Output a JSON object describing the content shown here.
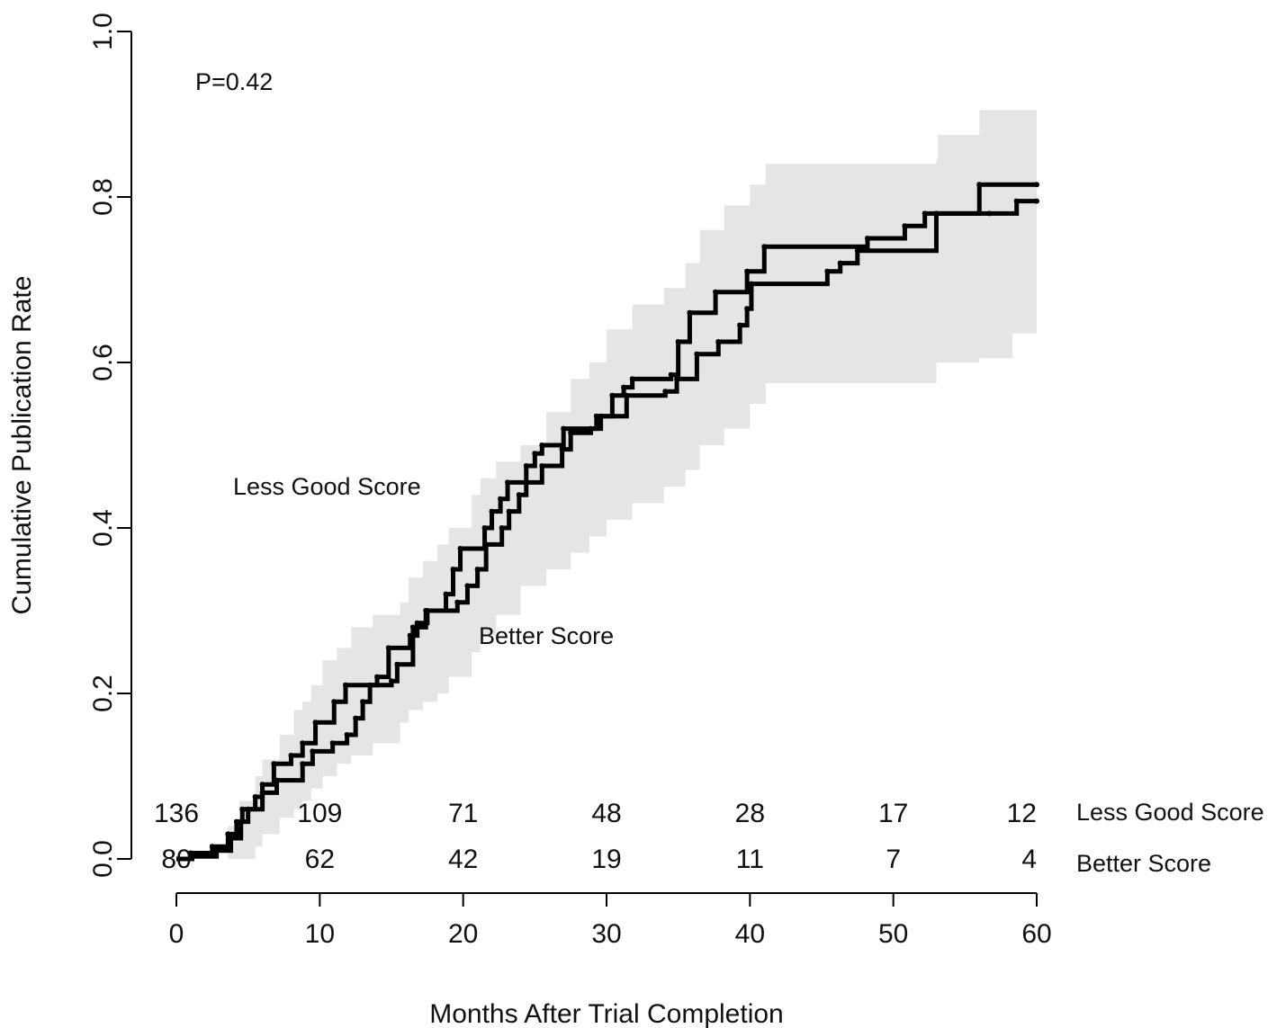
{
  "chart_data": {
    "type": "line",
    "subtype": "kaplan-meier cumulative incidence",
    "xlabel": "Months After Trial Completion",
    "ylabel": "Cumulative Publication Rate",
    "xlim": [
      0,
      60
    ],
    "ylim": [
      0,
      1
    ],
    "x_ticks": [
      "0",
      "10",
      "20",
      "30",
      "40",
      "50",
      "60"
    ],
    "y_ticks": [
      "0.0",
      "0.2",
      "0.4",
      "0.6",
      "0.8",
      "1.0"
    ],
    "grid": false,
    "p_value_label": "P=0.42",
    "series": [
      {
        "name": "Less Good Score",
        "color": "#000000",
        "steps": [
          [
            0,
            0
          ],
          [
            1.0,
            0.007
          ],
          [
            2.5,
            0.015
          ],
          [
            3.6,
            0.03
          ],
          [
            4.2,
            0.045
          ],
          [
            4.6,
            0.06
          ],
          [
            5.5,
            0.075
          ],
          [
            6,
            0.09
          ],
          [
            6.8,
            0.115
          ],
          [
            8,
            0.125
          ],
          [
            8.8,
            0.14
          ],
          [
            9.7,
            0.165
          ],
          [
            11,
            0.19
          ],
          [
            11.8,
            0.21
          ],
          [
            14,
            0.22
          ],
          [
            14.8,
            0.255
          ],
          [
            16.3,
            0.27
          ],
          [
            16.8,
            0.285
          ],
          [
            17.5,
            0.3
          ],
          [
            18.8,
            0.32
          ],
          [
            19.3,
            0.35
          ],
          [
            19.8,
            0.375
          ],
          [
            21.5,
            0.4
          ],
          [
            22,
            0.42
          ],
          [
            22.6,
            0.435
          ],
          [
            23.1,
            0.455
          ],
          [
            24.4,
            0.475
          ],
          [
            25,
            0.49
          ],
          [
            25.5,
            0.5
          ],
          [
            27,
            0.52
          ],
          [
            29.3,
            0.535
          ],
          [
            30.4,
            0.56
          ],
          [
            31.2,
            0.57
          ],
          [
            31.8,
            0.58
          ],
          [
            34.5,
            0.585
          ],
          [
            35,
            0.625
          ],
          [
            35.8,
            0.66
          ],
          [
            37.6,
            0.685
          ],
          [
            39.8,
            0.71
          ],
          [
            41,
            0.74
          ],
          [
            48.2,
            0.75
          ],
          [
            50.8,
            0.765
          ],
          [
            52.2,
            0.78
          ],
          [
            56,
            0.815
          ],
          [
            60,
            0.815
          ]
        ]
      },
      {
        "name": "Better Score",
        "color": "#000000",
        "steps": [
          [
            0,
            0
          ],
          [
            1.1,
            0.003
          ],
          [
            2.8,
            0.01
          ],
          [
            3.8,
            0.025
          ],
          [
            4.5,
            0.045
          ],
          [
            5,
            0.06
          ],
          [
            6,
            0.08
          ],
          [
            7,
            0.095
          ],
          [
            8.8,
            0.115
          ],
          [
            9.5,
            0.13
          ],
          [
            10.9,
            0.14
          ],
          [
            11.9,
            0.15
          ],
          [
            12.5,
            0.17
          ],
          [
            13,
            0.19
          ],
          [
            13.5,
            0.21
          ],
          [
            15,
            0.215
          ],
          [
            15.4,
            0.235
          ],
          [
            16.5,
            0.28
          ],
          [
            17.4,
            0.3
          ],
          [
            19.6,
            0.31
          ],
          [
            20.3,
            0.33
          ],
          [
            21,
            0.35
          ],
          [
            21.6,
            0.38
          ],
          [
            22.7,
            0.4
          ],
          [
            23.2,
            0.42
          ],
          [
            23.9,
            0.44
          ],
          [
            24.4,
            0.455
          ],
          [
            25.5,
            0.475
          ],
          [
            26.9,
            0.495
          ],
          [
            27.5,
            0.515
          ],
          [
            28.9,
            0.52
          ],
          [
            29.6,
            0.535
          ],
          [
            31.4,
            0.56
          ],
          [
            34.1,
            0.565
          ],
          [
            34.9,
            0.58
          ],
          [
            36.3,
            0.61
          ],
          [
            37.8,
            0.625
          ],
          [
            39.3,
            0.645
          ],
          [
            39.8,
            0.665
          ],
          [
            40.1,
            0.695
          ],
          [
            45.4,
            0.71
          ],
          [
            46.3,
            0.72
          ],
          [
            47.5,
            0.735
          ],
          [
            53,
            0.78
          ],
          [
            56.7,
            0.78
          ],
          [
            58.6,
            0.795
          ],
          [
            60,
            0.795
          ]
        ]
      }
    ],
    "confidence_band": [
      [
        0,
        0,
        0
      ],
      [
        3.6,
        0,
        0.04
      ],
      [
        4.4,
        0,
        0.07
      ],
      [
        5.5,
        0.015,
        0.1
      ],
      [
        6,
        0.03,
        0.12
      ],
      [
        7.2,
        0.05,
        0.15
      ],
      [
        8.2,
        0.06,
        0.18
      ],
      [
        8.8,
        0.07,
        0.19
      ],
      [
        9.4,
        0.085,
        0.21
      ],
      [
        10.2,
        0.1,
        0.24
      ],
      [
        11.2,
        0.115,
        0.255
      ],
      [
        12.2,
        0.125,
        0.28
      ],
      [
        13.7,
        0.14,
        0.295
      ],
      [
        15.6,
        0.165,
        0.31
      ],
      [
        16.2,
        0.18,
        0.34
      ],
      [
        17.2,
        0.19,
        0.36
      ],
      [
        18.2,
        0.2,
        0.38
      ],
      [
        19,
        0.22,
        0.4
      ],
      [
        20.6,
        0.25,
        0.44
      ],
      [
        21.2,
        0.27,
        0.46
      ],
      [
        22.3,
        0.295,
        0.48
      ],
      [
        24,
        0.33,
        0.5
      ],
      [
        25.8,
        0.35,
        0.54
      ],
      [
        27.5,
        0.37,
        0.58
      ],
      [
        28.8,
        0.39,
        0.6
      ],
      [
        30,
        0.41,
        0.64
      ],
      [
        31.8,
        0.43,
        0.67
      ],
      [
        34,
        0.45,
        0.69
      ],
      [
        35.5,
        0.47,
        0.72
      ],
      [
        36.5,
        0.5,
        0.76
      ],
      [
        38.2,
        0.52,
        0.79
      ],
      [
        40,
        0.55,
        0.815
      ],
      [
        41.1,
        0.575,
        0.84
      ],
      [
        52.1,
        0.575,
        0.84
      ],
      [
        53,
        0.6,
        0.845
      ],
      [
        53.1,
        0.6,
        0.875
      ],
      [
        56,
        0.605,
        0.905
      ],
      [
        58.3,
        0.635,
        0.905
      ],
      [
        60,
        0.635,
        0.905
      ]
    ],
    "risk_table": {
      "times": [
        0,
        10,
        20,
        30,
        40,
        50,
        60
      ],
      "rows": [
        {
          "label": "Less Good Score",
          "values": [
            "136",
            "109",
            "71",
            "48",
            "28",
            "17",
            "12"
          ]
        },
        {
          "label": "Better Score",
          "values": [
            "80",
            "62",
            "42",
            "19",
            "11",
            "7",
            "4"
          ]
        }
      ]
    },
    "annotations": [
      {
        "text": "Less Good Score",
        "x": 10.5,
        "y": 0.44
      },
      {
        "text": "Better Score",
        "x": 25.8,
        "y": 0.26
      }
    ]
  }
}
